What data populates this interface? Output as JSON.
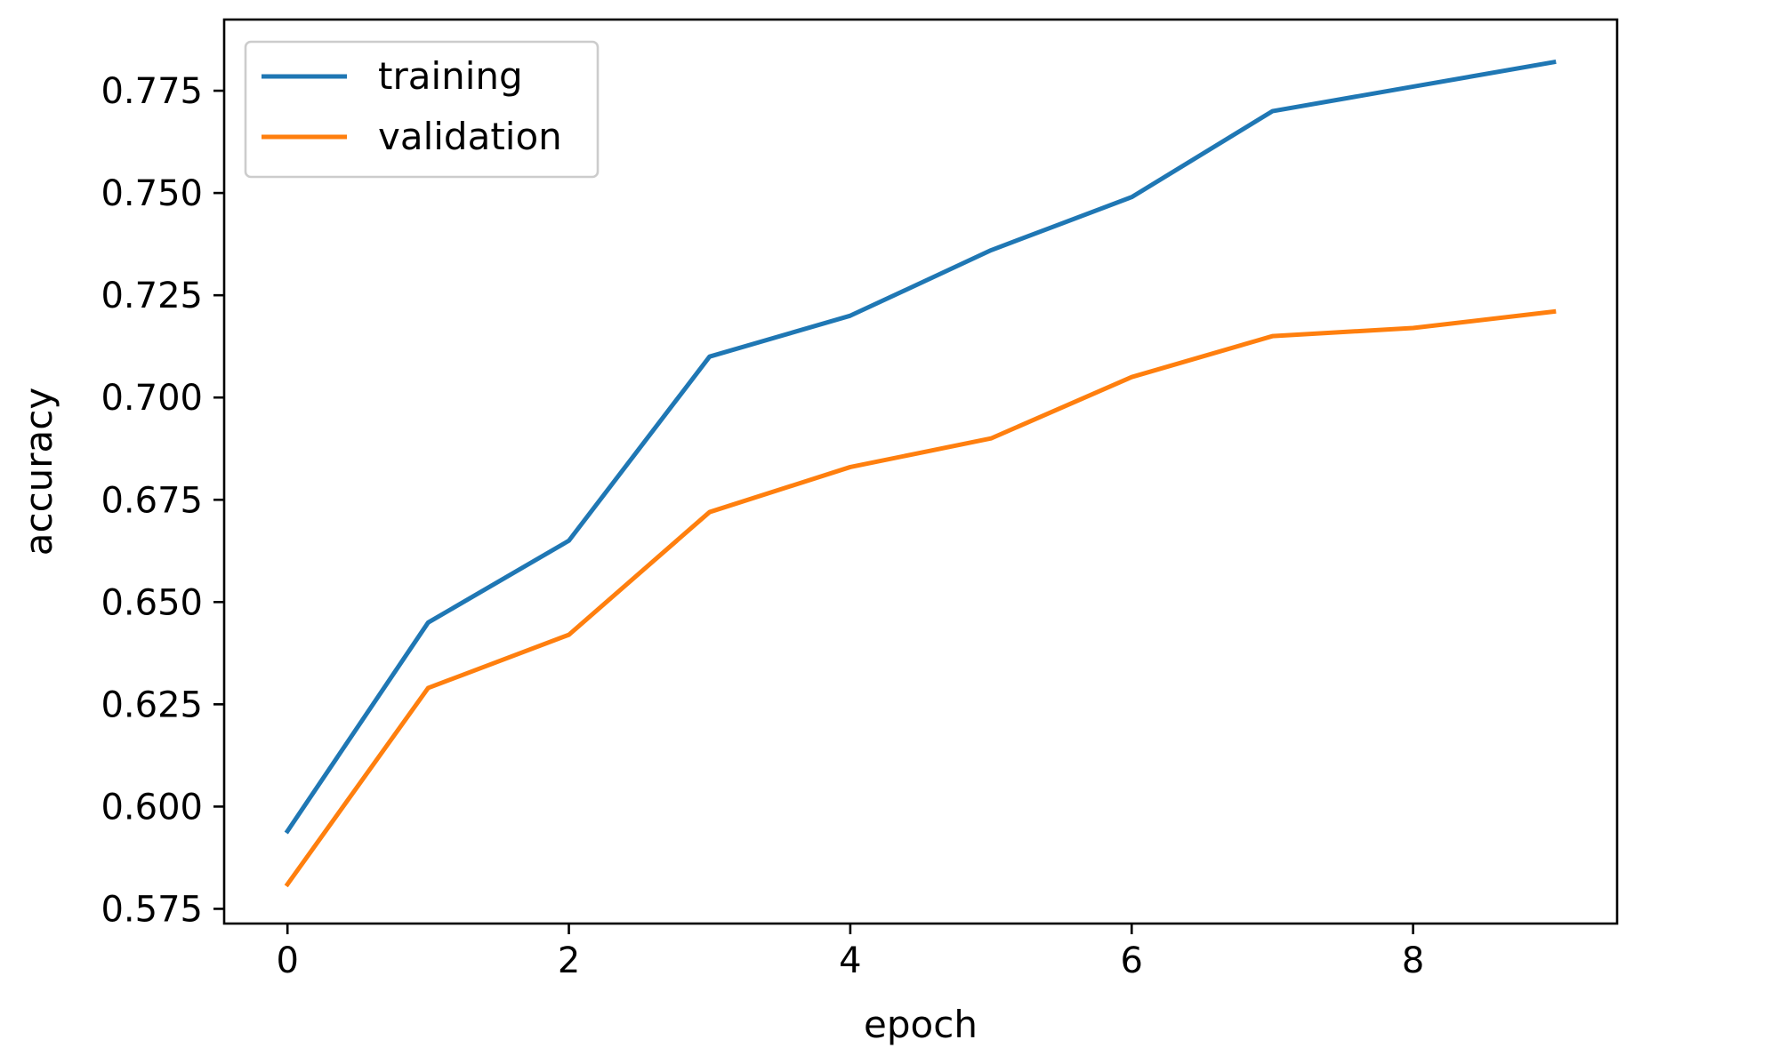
{
  "chart_data": {
    "type": "line",
    "title": "",
    "xlabel": "epoch",
    "ylabel": "accuracy",
    "xlim": [
      -0.45,
      9.45
    ],
    "ylim": [
      0.5714,
      0.7924
    ],
    "x_ticks": [
      0,
      2,
      4,
      6,
      8
    ],
    "y_ticks": [
      0.575,
      0.6,
      0.625,
      0.65,
      0.675,
      0.7,
      0.725,
      0.75,
      0.775
    ],
    "x_tick_labels": [
      "0",
      "2",
      "4",
      "6",
      "8"
    ],
    "y_tick_labels": [
      "0.575",
      "0.600",
      "0.625",
      "0.650",
      "0.675",
      "0.700",
      "0.725",
      "0.750",
      "0.775"
    ],
    "grid": false,
    "legend_position": "top-left",
    "x": [
      0,
      1,
      2,
      3,
      4,
      5,
      6,
      7,
      8,
      9
    ],
    "series": [
      {
        "name": "training",
        "color": "#1f77b4",
        "values": [
          0.594,
          0.645,
          0.665,
          0.71,
          0.72,
          0.736,
          0.749,
          0.77,
          0.776,
          0.782
        ]
      },
      {
        "name": "validation",
        "color": "#ff7f0e",
        "values": [
          0.581,
          0.629,
          0.642,
          0.672,
          0.683,
          0.69,
          0.705,
          0.715,
          0.717,
          0.721
        ]
      }
    ]
  }
}
